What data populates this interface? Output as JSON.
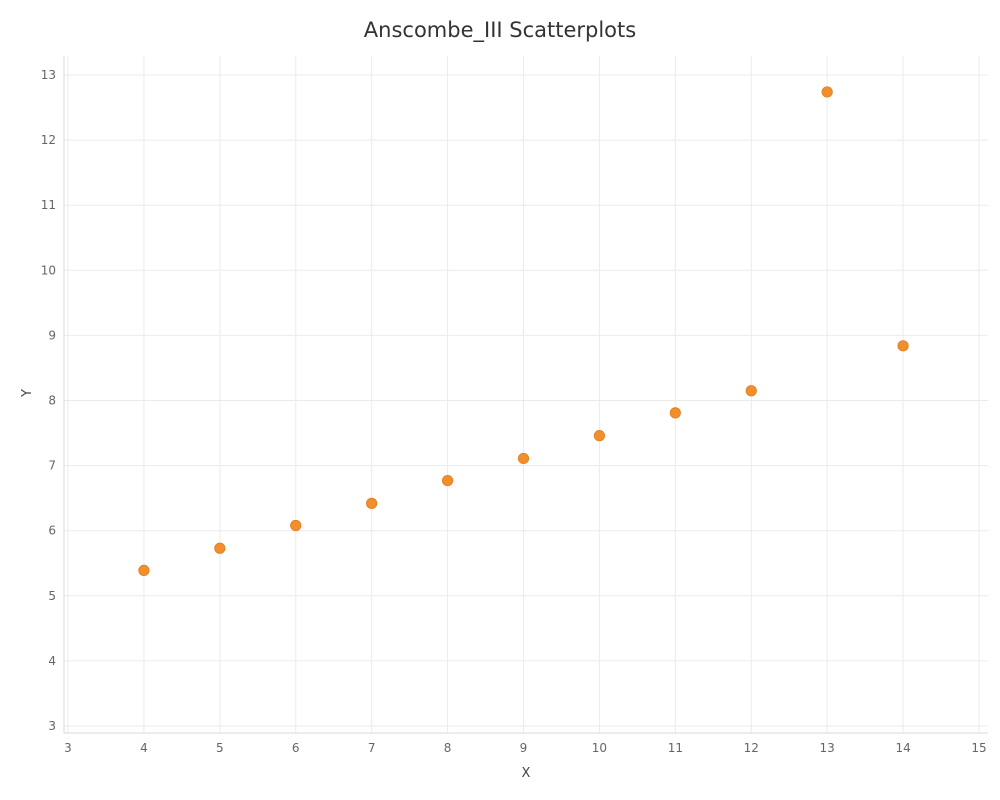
{
  "chart_data": {
    "type": "scatter",
    "title": "Anscombe_III Scatterplots",
    "xlabel": "X",
    "ylabel": "Y",
    "xlim": [
      3,
      15
    ],
    "ylim": [
      3,
      13
    ],
    "x_ticks": [
      3,
      4,
      5,
      6,
      7,
      8,
      9,
      10,
      11,
      12,
      13,
      14,
      15
    ],
    "y_ticks": [
      3,
      4,
      5,
      6,
      7,
      8,
      9,
      10,
      11,
      12,
      13
    ],
    "grid": true,
    "legend": "none",
    "marker_color": "#f28e2b",
    "grid_color": "#ebebeb",
    "points": [
      {
        "x": 4,
        "y": 5.39
      },
      {
        "x": 5,
        "y": 5.73
      },
      {
        "x": 6,
        "y": 6.08
      },
      {
        "x": 7,
        "y": 6.42
      },
      {
        "x": 8,
        "y": 6.77
      },
      {
        "x": 9,
        "y": 7.11
      },
      {
        "x": 10,
        "y": 7.46
      },
      {
        "x": 11,
        "y": 7.81
      },
      {
        "x": 12,
        "y": 8.15
      },
      {
        "x": 13,
        "y": 12.74
      },
      {
        "x": 14,
        "y": 8.84
      }
    ]
  }
}
